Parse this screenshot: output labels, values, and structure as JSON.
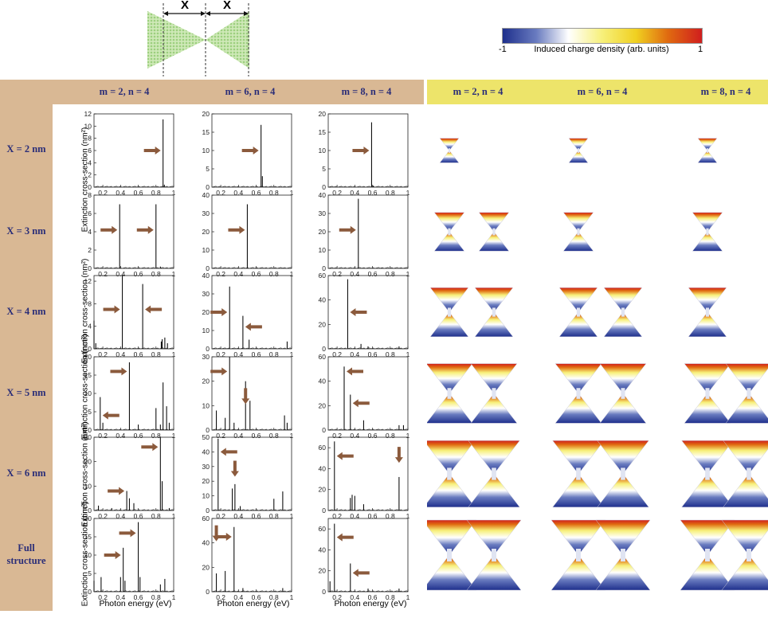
{
  "diagram": {
    "x_label_left": "X",
    "x_label_right": "X"
  },
  "colorbar": {
    "min_label": "-1",
    "max_label": "1",
    "title": "Induced charge density (arb. units)",
    "colors": [
      "#1e2f8c",
      "#6a7cc0",
      "#ffffff",
      "#f7f07a",
      "#f0d020",
      "#e06a10",
      "#d01e1e"
    ]
  },
  "header": {
    "left_cols": [
      "m = 2, n = 4",
      "m = 6, n = 4",
      "m = 8, n = 4"
    ],
    "right_cols": [
      "m = 2, n = 4",
      "m = 6, n = 4",
      "m = 8, n = 4"
    ]
  },
  "rows": [
    "X = 2 nm",
    "X = 3 nm",
    "X = 4 nm",
    "X = 5 nm",
    "X = 6 nm",
    "Full structure"
  ],
  "axes": {
    "xlabel": "Photon energy (eV)",
    "ylabel": "Extinction cross-section (nm²)",
    "xticks": [
      "0.2",
      "0.4",
      "0.6",
      "0.8",
      "1"
    ]
  },
  "colors": {
    "tan": "#d9b894",
    "yellow": "#ede46a",
    "navy": "#2b2e78",
    "arrow": "#8b5a3c",
    "line": "#222222"
  },
  "chart_data": [
    {
      "type": "line",
      "row": 0,
      "col": 0,
      "title": "X = 2 nm; m = 2, n = 4",
      "ylim": [
        0,
        12
      ],
      "yticks": [
        0,
        2,
        4,
        6,
        8,
        10,
        12
      ],
      "peaks": [
        [
          0.88,
          11.1
        ],
        [
          0.895,
          0.4
        ]
      ],
      "arrows": [
        {
          "x": 0.88,
          "y": 6,
          "dir": "right"
        }
      ]
    },
    {
      "type": "line",
      "row": 0,
      "col": 1,
      "title": "X = 2 nm; m = 6, n = 4",
      "ylim": [
        0,
        20
      ],
      "yticks": [
        0,
        5,
        10,
        15,
        20
      ],
      "peaks": [
        [
          0.655,
          17
        ],
        [
          0.67,
          3
        ]
      ],
      "arrows": [
        {
          "x": 0.655,
          "y": 10,
          "dir": "right"
        }
      ]
    },
    {
      "type": "line",
      "row": 0,
      "col": 2,
      "title": "X = 2 nm; m = 8, n = 4",
      "ylim": [
        0,
        20
      ],
      "yticks": [
        0,
        5,
        10,
        15,
        20
      ],
      "peaks": [
        [
          0.59,
          17.7
        ],
        [
          0.61,
          0.4
        ]
      ],
      "arrows": [
        {
          "x": 0.59,
          "y": 10,
          "dir": "right"
        }
      ]
    },
    {
      "type": "line",
      "row": 1,
      "col": 0,
      "title": "X = 3 nm; m = 2, n = 4",
      "ylim": [
        0,
        8
      ],
      "yticks": [
        0,
        2,
        4,
        6,
        8
      ],
      "peaks": [
        [
          0.39,
          7
        ],
        [
          0.8,
          7
        ],
        [
          0.85,
          0.2
        ]
      ],
      "arrows": [
        {
          "x": 0.39,
          "y": 4.2,
          "dir": "right"
        },
        {
          "x": 0.8,
          "y": 4.2,
          "dir": "right"
        }
      ]
    },
    {
      "type": "line",
      "row": 1,
      "col": 1,
      "title": "X = 3 nm; m = 6, n = 4",
      "ylim": [
        0,
        40
      ],
      "yticks": [
        0,
        10,
        20,
        30,
        40
      ],
      "peaks": [
        [
          0.5,
          35
        ],
        [
          0.6,
          0.4
        ],
        [
          0.9,
          0.3
        ]
      ],
      "arrows": [
        {
          "x": 0.5,
          "y": 21,
          "dir": "right"
        }
      ]
    },
    {
      "type": "line",
      "row": 1,
      "col": 2,
      "title": "X = 3 nm; m = 8, n = 4",
      "ylim": [
        0,
        40
      ],
      "yticks": [
        0,
        10,
        20,
        30,
        40
      ],
      "peaks": [
        [
          0.44,
          38
        ],
        [
          0.7,
          0.3
        ]
      ],
      "arrows": [
        {
          "x": 0.44,
          "y": 21,
          "dir": "right"
        }
      ]
    },
    {
      "type": "line",
      "row": 2,
      "col": 0,
      "title": "X = 4 nm; m = 2, n = 4",
      "ylim": [
        0,
        13
      ],
      "yticks": [
        0,
        4,
        8,
        12
      ],
      "peaks": [
        [
          0.1,
          5
        ],
        [
          0.12,
          1
        ],
        [
          0.42,
          13.5
        ],
        [
          0.65,
          11.5
        ],
        [
          0.86,
          1.3
        ],
        [
          0.87,
          1.7
        ],
        [
          0.9,
          2
        ],
        [
          0.93,
          1
        ]
      ],
      "arrows": [
        {
          "x": 0.42,
          "y": 7,
          "dir": "right"
        },
        {
          "x": 0.65,
          "y": 7,
          "dir": "left"
        }
      ]
    },
    {
      "type": "line",
      "row": 2,
      "col": 1,
      "title": "X = 4 nm; m = 6, n = 4",
      "ylim": [
        0,
        40
      ],
      "yticks": [
        0,
        10,
        20,
        30,
        40
      ],
      "peaks": [
        [
          0.3,
          34
        ],
        [
          0.45,
          18
        ],
        [
          0.52,
          5
        ],
        [
          0.95,
          4
        ]
      ],
      "arrows": [
        {
          "x": 0.3,
          "y": 20,
          "dir": "right"
        },
        {
          "x": 0.45,
          "y": 12,
          "dir": "left"
        }
      ]
    },
    {
      "type": "line",
      "row": 2,
      "col": 2,
      "title": "X = 4 nm; m = 8, n = 4",
      "ylim": [
        0,
        60
      ],
      "yticks": [
        0,
        20,
        40,
        60
      ],
      "peaks": [
        [
          0.32,
          57
        ],
        [
          0.47,
          4
        ],
        [
          0.55,
          2
        ],
        [
          0.9,
          2
        ]
      ],
      "arrows": [
        {
          "x": 0.32,
          "y": 30,
          "dir": "left"
        }
      ]
    },
    {
      "type": "line",
      "row": 3,
      "col": 0,
      "title": "X = 5 nm; m = 2, n = 4",
      "ylim": [
        0,
        20
      ],
      "yticks": [
        0,
        5,
        10,
        15,
        20
      ],
      "peaks": [
        [
          0.17,
          9
        ],
        [
          0.2,
          2
        ],
        [
          0.5,
          18.5
        ],
        [
          0.6,
          1.5
        ],
        [
          0.8,
          6
        ],
        [
          0.85,
          1.5
        ],
        [
          0.88,
          13
        ],
        [
          0.92,
          6.5
        ],
        [
          0.95,
          2
        ]
      ],
      "arrows": [
        {
          "x": 0.17,
          "y": 4,
          "dir": "left"
        },
        {
          "x": 0.5,
          "y": 16,
          "dir": "right"
        }
      ]
    },
    {
      "type": "line",
      "row": 3,
      "col": 1,
      "title": "X = 5 nm; m = 6, n = 4",
      "ylim": [
        0,
        30
      ],
      "yticks": [
        0,
        10,
        20,
        30
      ],
      "peaks": [
        [
          0.15,
          8
        ],
        [
          0.25,
          5
        ],
        [
          0.3,
          30
        ],
        [
          0.35,
          3
        ],
        [
          0.48,
          20
        ],
        [
          0.53,
          12
        ],
        [
          0.92,
          6
        ],
        [
          0.95,
          3
        ]
      ],
      "arrows": [
        {
          "x": 0.3,
          "y": 24,
          "dir": "right"
        },
        {
          "x": 0.48,
          "y": 10,
          "dir": "down"
        }
      ]
    },
    {
      "type": "line",
      "row": 3,
      "col": 2,
      "title": "X = 5 nm; m = 8, n = 4",
      "ylim": [
        0,
        60
      ],
      "yticks": [
        0,
        20,
        40,
        60
      ],
      "peaks": [
        [
          0.28,
          52
        ],
        [
          0.35,
          29
        ],
        [
          0.5,
          8
        ],
        [
          0.9,
          4
        ],
        [
          0.95,
          4
        ]
      ],
      "arrows": [
        {
          "x": 0.28,
          "y": 48,
          "dir": "left"
        },
        {
          "x": 0.35,
          "y": 22,
          "dir": "left"
        }
      ]
    },
    {
      "type": "line",
      "row": 4,
      "col": 0,
      "title": "X = 6 nm; m = 2, n = 4",
      "ylim": [
        0,
        30
      ],
      "yticks": [
        0,
        10,
        20,
        30
      ],
      "peaks": [
        [
          0.15,
          2
        ],
        [
          0.3,
          1
        ],
        [
          0.47,
          8
        ],
        [
          0.5,
          5
        ],
        [
          0.55,
          3
        ],
        [
          0.85,
          30
        ],
        [
          0.87,
          12
        ],
        [
          0.95,
          1
        ]
      ],
      "arrows": [
        {
          "x": 0.47,
          "y": 8,
          "dir": "right"
        },
        {
          "x": 0.85,
          "y": 26,
          "dir": "right"
        }
      ]
    },
    {
      "type": "line",
      "row": 4,
      "col": 1,
      "title": "X = 6 nm; m = 6, n = 4",
      "ylim": [
        0,
        50
      ],
      "yticks": [
        0,
        10,
        20,
        30,
        40,
        50
      ],
      "peaks": [
        [
          0.17,
          49
        ],
        [
          0.33,
          15
        ],
        [
          0.36,
          18
        ],
        [
          0.42,
          3
        ],
        [
          0.8,
          8
        ],
        [
          0.9,
          13
        ]
      ],
      "arrows": [
        {
          "x": 0.17,
          "y": 40,
          "dir": "left"
        },
        {
          "x": 0.36,
          "y": 22,
          "dir": "down"
        }
      ]
    },
    {
      "type": "line",
      "row": 4,
      "col": 2,
      "title": "X = 6 nm; m = 8, n = 4",
      "ylim": [
        0,
        70
      ],
      "yticks": [
        0,
        20,
        40,
        60
      ],
      "peaks": [
        [
          0.17,
          66
        ],
        [
          0.35,
          12
        ],
        [
          0.37,
          15
        ],
        [
          0.4,
          14
        ],
        [
          0.5,
          6
        ],
        [
          0.9,
          32
        ]
      ],
      "arrows": [
        {
          "x": 0.17,
          "y": 52,
          "dir": "left"
        },
        {
          "x": 0.9,
          "y": 44,
          "dir": "down"
        }
      ]
    },
    {
      "type": "line",
      "row": 5,
      "col": 0,
      "title": "Full structure; m = 2, n = 4",
      "ylim": [
        0,
        20
      ],
      "yticks": [
        0,
        5,
        10,
        15,
        20
      ],
      "peaks": [
        [
          0.1,
          3
        ],
        [
          0.18,
          4
        ],
        [
          0.4,
          4
        ],
        [
          0.43,
          12
        ],
        [
          0.45,
          3
        ],
        [
          0.6,
          19
        ],
        [
          0.62,
          4
        ],
        [
          0.85,
          2
        ],
        [
          0.9,
          3.5
        ]
      ],
      "arrows": [
        {
          "x": 0.43,
          "y": 10,
          "dir": "right"
        },
        {
          "x": 0.6,
          "y": 16,
          "dir": "right"
        }
      ]
    },
    {
      "type": "line",
      "row": 5,
      "col": 1,
      "title": "Full structure; m = 6, n = 4",
      "ylim": [
        0,
        60
      ],
      "yticks": [
        0,
        20,
        40,
        60
      ],
      "peaks": [
        [
          0.15,
          15
        ],
        [
          0.25,
          17
        ],
        [
          0.35,
          53
        ],
        [
          0.45,
          3
        ],
        [
          0.9,
          3
        ]
      ],
      "arrows": [
        {
          "x": 0.15,
          "y": 40,
          "dir": "down"
        },
        {
          "x": 0.35,
          "y": 45,
          "dir": "right"
        }
      ]
    },
    {
      "type": "line",
      "row": 5,
      "col": 2,
      "title": "Full structure; m = 8, n = 4",
      "ylim": [
        0,
        70
      ],
      "yticks": [
        0,
        20,
        40,
        60
      ],
      "peaks": [
        [
          0.12,
          10
        ],
        [
          0.17,
          65
        ],
        [
          0.35,
          27
        ],
        [
          0.55,
          3
        ],
        [
          0.9,
          3
        ]
      ],
      "arrows": [
        {
          "x": 0.17,
          "y": 52,
          "dir": "left"
        },
        {
          "x": 0.35,
          "y": 18,
          "dir": "left"
        }
      ]
    }
  ],
  "charge_maps": [
    {
      "row": 0,
      "col": 0,
      "scale": 0.35
    },
    {
      "row": 0,
      "col": 2,
      "scale": 0.35
    },
    {
      "row": 0,
      "col": 4,
      "scale": 0.35
    },
    {
      "row": 1,
      "col": 0,
      "scale": 0.55
    },
    {
      "row": 1,
      "col": 1,
      "scale": 0.55
    },
    {
      "row": 1,
      "col": 2,
      "scale": 0.55
    },
    {
      "row": 1,
      "col": 4,
      "scale": 0.55
    },
    {
      "row": 2,
      "col": 0,
      "scale": 0.7
    },
    {
      "row": 2,
      "col": 1,
      "scale": 0.7
    },
    {
      "row": 2,
      "col": 2,
      "scale": 0.7
    },
    {
      "row": 2,
      "col": 3,
      "scale": 0.7
    },
    {
      "row": 2,
      "col": 4,
      "scale": 0.7
    },
    {
      "row": 3,
      "col": 0,
      "scale": 0.85
    },
    {
      "row": 3,
      "col": 1,
      "scale": 0.85
    },
    {
      "row": 3,
      "col": 2,
      "scale": 0.85
    },
    {
      "row": 3,
      "col": 3,
      "scale": 0.85
    },
    {
      "row": 3,
      "col": 4,
      "scale": 0.85
    },
    {
      "row": 3,
      "col": 5,
      "scale": 0.85
    },
    {
      "row": 4,
      "col": 0,
      "scale": 0.95
    },
    {
      "row": 4,
      "col": 1,
      "scale": 0.95
    },
    {
      "row": 4,
      "col": 2,
      "scale": 0.95
    },
    {
      "row": 4,
      "col": 3,
      "scale": 0.95
    },
    {
      "row": 4,
      "col": 4,
      "scale": 0.95
    },
    {
      "row": 4,
      "col": 5,
      "scale": 0.95
    },
    {
      "row": 5,
      "col": 0,
      "scale": 1.0
    },
    {
      "row": 5,
      "col": 1,
      "scale": 1.0
    },
    {
      "row": 5,
      "col": 2,
      "scale": 1.0
    },
    {
      "row": 5,
      "col": 3,
      "scale": 1.0
    },
    {
      "row": 5,
      "col": 4,
      "scale": 1.0
    },
    {
      "row": 5,
      "col": 5,
      "scale": 1.0
    }
  ]
}
